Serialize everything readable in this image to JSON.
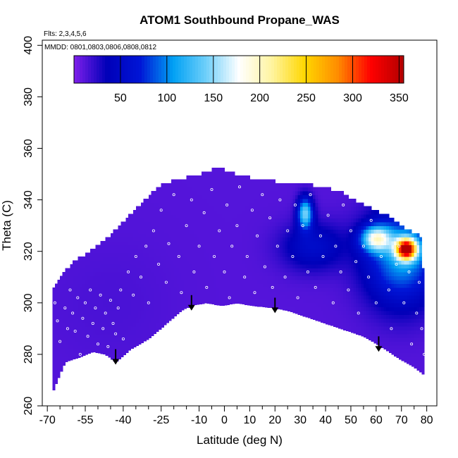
{
  "chart_data": {
    "type": "heatmap",
    "title": "ATOM1 Southbound Propane_WAS",
    "subtitle_flights": "Flts: 2,3,4,5,6",
    "subtitle_dates": "MMDD: 0801,0803,0806,0808,0812",
    "xlabel": "Latitude (deg N)",
    "ylabel": "Theta (C)",
    "xlim": [
      -72,
      84
    ],
    "ylim": [
      260,
      402
    ],
    "x_major_ticks": [
      -70,
      -55,
      -40,
      -25,
      -10,
      0,
      10,
      20,
      30,
      40,
      50,
      60,
      70,
      80
    ],
    "x_minor_ticks": [
      -65,
      -60,
      -50,
      -45,
      -35,
      -30,
      -20,
      -15,
      -5,
      5,
      15,
      25,
      35,
      45,
      55,
      65,
      75
    ],
    "y_ticks": [
      260,
      280,
      300,
      320,
      340,
      360,
      380,
      400
    ],
    "colorbar": {
      "range": [
        0,
        355
      ],
      "ticks": [
        50,
        100,
        150,
        200,
        250,
        300,
        350
      ],
      "colors": [
        "#7F1FEB",
        "#0000B8",
        "#0015D6",
        "#00A0F4",
        "#6ECFFA",
        "#FFFFFF",
        "#FFF4A0",
        "#FFD700",
        "#FF8C00",
        "#FF0000",
        "#B20000"
      ]
    },
    "domain_bottom": [
      [
        -68,
        265
      ],
      [
        -63,
        277
      ],
      [
        -57,
        279
      ],
      [
        -52,
        281
      ],
      [
        -47,
        280
      ],
      [
        -43,
        277
      ],
      [
        -37,
        282
      ],
      [
        -30,
        286
      ],
      [
        -24,
        291
      ],
      [
        -17,
        297
      ],
      [
        -13,
        299
      ],
      [
        -7,
        300
      ],
      [
        -2,
        299
      ],
      [
        0,
        299
      ],
      [
        5,
        300
      ],
      [
        10,
        299
      ],
      [
        20,
        298
      ],
      [
        25,
        297
      ],
      [
        40,
        292
      ],
      [
        55,
        287
      ],
      [
        62,
        283
      ],
      [
        68,
        279
      ],
      [
        75,
        275
      ],
      [
        79,
        272
      ]
    ],
    "domain_top": [
      [
        -68,
        305
      ],
      [
        -64,
        311
      ],
      [
        -60,
        315
      ],
      [
        -52,
        320
      ],
      [
        -47,
        324
      ],
      [
        -42,
        329
      ],
      [
        -37,
        334
      ],
      [
        -30,
        341
      ],
      [
        -25,
        345
      ],
      [
        -20,
        347
      ],
      [
        -10,
        349
      ],
      [
        -3,
        352
      ],
      [
        5,
        349
      ],
      [
        15,
        347
      ],
      [
        25,
        346
      ],
      [
        35,
        345
      ],
      [
        45,
        343
      ],
      [
        52,
        339
      ],
      [
        58,
        336
      ],
      [
        65,
        333
      ],
      [
        72,
        328
      ],
      [
        78,
        325
      ],
      [
        79,
        300
      ],
      [
        80,
        290
      ]
    ],
    "hotspots": [
      {
        "lat": -45,
        "theta": 300,
        "radius_lat": 25,
        "radius_theta": 25,
        "value": 15
      },
      {
        "lat": 35,
        "theta": 322,
        "radius_lat": 12,
        "radius_theta": 9,
        "value": 55
      },
      {
        "lat": 32,
        "theta": 335,
        "radius_lat": 3,
        "radius_theta": 6,
        "value": 140
      },
      {
        "lat": 70,
        "theta": 318,
        "radius_lat": 14,
        "radius_theta": 18,
        "value": 110
      },
      {
        "lat": 72,
        "theta": 321,
        "radius_lat": 4,
        "radius_theta": 4,
        "value": 310
      },
      {
        "lat": 60,
        "theta": 325,
        "radius_lat": 6,
        "radius_theta": 5,
        "value": 150
      }
    ],
    "sample_points": [
      [
        -67,
        300
      ],
      [
        -66,
        293
      ],
      [
        -65,
        285
      ],
      [
        -63,
        298
      ],
      [
        -62,
        290
      ],
      [
        -61,
        305
      ],
      [
        -60,
        296
      ],
      [
        -59,
        289
      ],
      [
        -58,
        302
      ],
      [
        -57,
        280
      ],
      [
        -56,
        294
      ],
      [
        -55,
        300
      ],
      [
        -54,
        287
      ],
      [
        -53,
        305
      ],
      [
        -52,
        292
      ],
      [
        -51,
        298
      ],
      [
        -50,
        284
      ],
      [
        -49,
        303
      ],
      [
        -48,
        290
      ],
      [
        -47,
        296
      ],
      [
        -46,
        283
      ],
      [
        -45,
        301
      ],
      [
        -44,
        292
      ],
      [
        -43,
        288
      ],
      [
        -42,
        298
      ],
      [
        -41,
        305
      ],
      [
        -40,
        286
      ],
      [
        -38,
        312
      ],
      [
        -36,
        303
      ],
      [
        -35,
        318
      ],
      [
        -33,
        310
      ],
      [
        -31,
        322
      ],
      [
        -30,
        300
      ],
      [
        -28,
        328
      ],
      [
        -26,
        315
      ],
      [
        -25,
        336
      ],
      [
        -23,
        308
      ],
      [
        -22,
        323
      ],
      [
        -20,
        342
      ],
      [
        -18,
        318
      ],
      [
        -17,
        304
      ],
      [
        -15,
        330
      ],
      [
        -13,
        340
      ],
      [
        -12,
        312
      ],
      [
        -10,
        322
      ],
      [
        -8,
        335
      ],
      [
        -7,
        306
      ],
      [
        -5,
        344
      ],
      [
        -4,
        318
      ],
      [
        -2,
        328
      ],
      [
        0,
        312
      ],
      [
        1,
        338
      ],
      [
        2,
        302
      ],
      [
        3,
        322
      ],
      [
        5,
        330
      ],
      [
        6,
        345
      ],
      [
        8,
        310
      ],
      [
        9,
        318
      ],
      [
        11,
        336
      ],
      [
        12,
        304
      ],
      [
        13,
        326
      ],
      [
        15,
        342
      ],
      [
        16,
        314
      ],
      [
        18,
        333
      ],
      [
        19,
        306
      ],
      [
        21,
        322
      ],
      [
        22,
        340
      ],
      [
        24,
        310
      ],
      [
        25,
        328
      ],
      [
        27,
        318
      ],
      [
        28,
        338
      ],
      [
        29,
        302
      ],
      [
        31,
        330
      ],
      [
        33,
        312
      ],
      [
        34,
        342
      ],
      [
        36,
        306
      ],
      [
        38,
        326
      ],
      [
        39,
        318
      ],
      [
        41,
        334
      ],
      [
        43,
        300
      ],
      [
        44,
        322
      ],
      [
        46,
        312
      ],
      [
        47,
        338
      ],
      [
        49,
        305
      ],
      [
        50,
        328
      ],
      [
        52,
        316
      ],
      [
        53,
        296
      ],
      [
        55,
        322
      ],
      [
        57,
        310
      ],
      [
        58,
        332
      ],
      [
        60,
        300
      ],
      [
        62,
        318
      ],
      [
        63,
        326
      ],
      [
        65,
        305
      ],
      [
        66,
        290
      ],
      [
        68,
        315
      ],
      [
        69,
        322
      ],
      [
        71,
        300
      ],
      [
        73,
        312
      ],
      [
        74,
        284
      ],
      [
        76,
        296
      ],
      [
        77,
        308
      ],
      [
        78,
        290
      ],
      [
        79,
        280
      ]
    ],
    "arrows": [
      {
        "lat": -43,
        "theta": 282
      },
      {
        "lat": -13,
        "theta": 303
      },
      {
        "lat": 20,
        "theta": 302
      },
      {
        "lat": 61,
        "theta": 287
      }
    ]
  }
}
